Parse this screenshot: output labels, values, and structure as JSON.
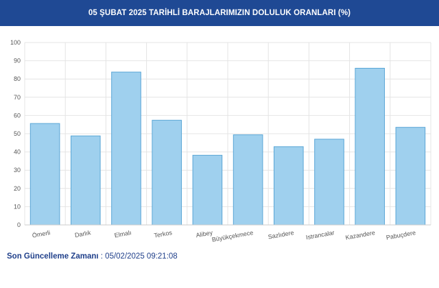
{
  "header": {
    "title": "05 ŞUBAT 2025 TARİHLİ BARAJLARIMIZIN DOLULUK ORANLARI (%)"
  },
  "footer": {
    "label": "Son Güncelleme Zamanı",
    "separator": " : ",
    "timestamp": "05/02/2025 09:21:08"
  },
  "colors": {
    "header_bg": "#1f4994",
    "bar_fill": "#9fd0ee",
    "bar_stroke": "#5aa6d6",
    "grid": "#e4e4e4"
  },
  "chart_data": {
    "type": "bar",
    "title": "05 ŞUBAT 2025 TARİHLİ BARAJLARIMIZIN DOLULUK ORANLARI (%)",
    "categories": [
      "Ömerli",
      "Darlık",
      "Elmalı",
      "Terkos",
      "Alibey",
      "Büyükçekmece",
      "Sazlıdere",
      "Istrancalar",
      "Kazandere",
      "Pabuçdere"
    ],
    "values": [
      55.6,
      48.8,
      83.8,
      57.4,
      38.2,
      49.4,
      42.9,
      47.0,
      85.9,
      53.5
    ],
    "ylim": [
      0,
      100
    ],
    "yticks": [
      0,
      10,
      20,
      30,
      40,
      50,
      60,
      70,
      80,
      90,
      100
    ],
    "xlabel": "",
    "ylabel": "",
    "grid": true,
    "legend": "none"
  }
}
